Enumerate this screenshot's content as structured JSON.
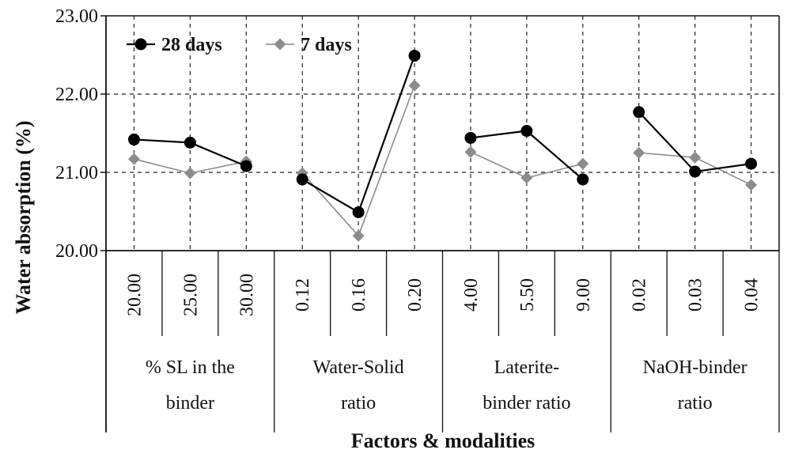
{
  "chart_data": {
    "type": "line",
    "ylabel": "Water absorption (%)",
    "xlabel": "Factors & modalities",
    "ylim": [
      20,
      23
    ],
    "yticks": [
      "20.00",
      "21.00",
      "22.00",
      "23.00"
    ],
    "grid": true,
    "legend_position": "top-left",
    "categories": [
      "20.00",
      "25.00",
      "30.00",
      "0.12",
      "0.16",
      "0.20",
      "4.00",
      "5.50",
      "9.00",
      "0.02",
      "0.03",
      "0.04"
    ],
    "groups": [
      {
        "lines": [
          "% SL in the",
          "binder"
        ],
        "indices": [
          0,
          1,
          2
        ]
      },
      {
        "lines": [
          "Water-Solid",
          "ratio"
        ],
        "indices": [
          3,
          4,
          5
        ]
      },
      {
        "lines": [
          "Laterite-",
          "binder ratio"
        ],
        "indices": [
          6,
          7,
          8
        ]
      },
      {
        "lines": [
          "NaOH-binder",
          "ratio"
        ],
        "indices": [
          9,
          10,
          11
        ]
      }
    ],
    "series": [
      {
        "name": "28 days",
        "color": "#000000",
        "marker": "circle",
        "values": [
          21.42,
          21.38,
          21.08,
          20.91,
          20.49,
          22.49,
          21.44,
          21.53,
          20.91,
          21.77,
          21.01,
          21.11
        ]
      },
      {
        "name": "7 days",
        "color": "#8c8c8c",
        "marker": "diamond",
        "values": [
          21.17,
          20.99,
          21.14,
          20.99,
          20.19,
          22.11,
          21.26,
          20.93,
          21.11,
          21.25,
          21.19,
          20.84
        ]
      }
    ]
  }
}
